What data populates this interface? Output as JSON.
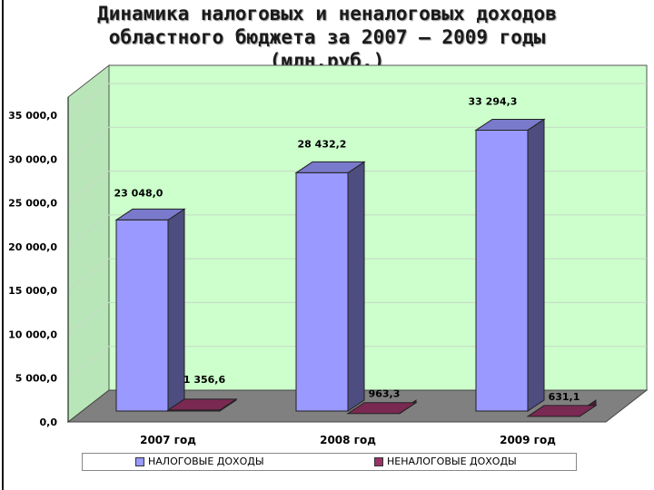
{
  "title": {
    "line1": "Динамика налоговых и неналоговых доходов",
    "line2": "областного бюджета за 2007 – 2009 годы",
    "line3": "(млн.руб.)"
  },
  "colors": {
    "wall": "#ccffcc",
    "floor": "#808080",
    "series1": "#9999ff",
    "series2": "#993366"
  },
  "chart_data": {
    "type": "bar",
    "categories": [
      "2007 год",
      "2008 год",
      "2009 год"
    ],
    "series": [
      {
        "name": "НАЛОГОВЫЕ ДОХОДЫ",
        "values": [
          23048.0,
          28432.2,
          33294.3
        ],
        "labels": [
          "23 048,0",
          "28 432,2",
          "33 294,3"
        ]
      },
      {
        "name": "НЕНАЛОГОВЫЕ ДОХОДЫ",
        "values": [
          1356.6,
          963.3,
          631.1
        ],
        "labels": [
          "1 356,6",
          "963,3",
          "631,1"
        ]
      }
    ],
    "yticks": [
      "0,0",
      "5 000,0",
      "10 000,0",
      "15 000,0",
      "20 000,0",
      "25 000,0",
      "30 000,0",
      "35 000,0"
    ],
    "ylim": [
      0,
      35000
    ],
    "grid": true,
    "legend_position": "bottom"
  }
}
